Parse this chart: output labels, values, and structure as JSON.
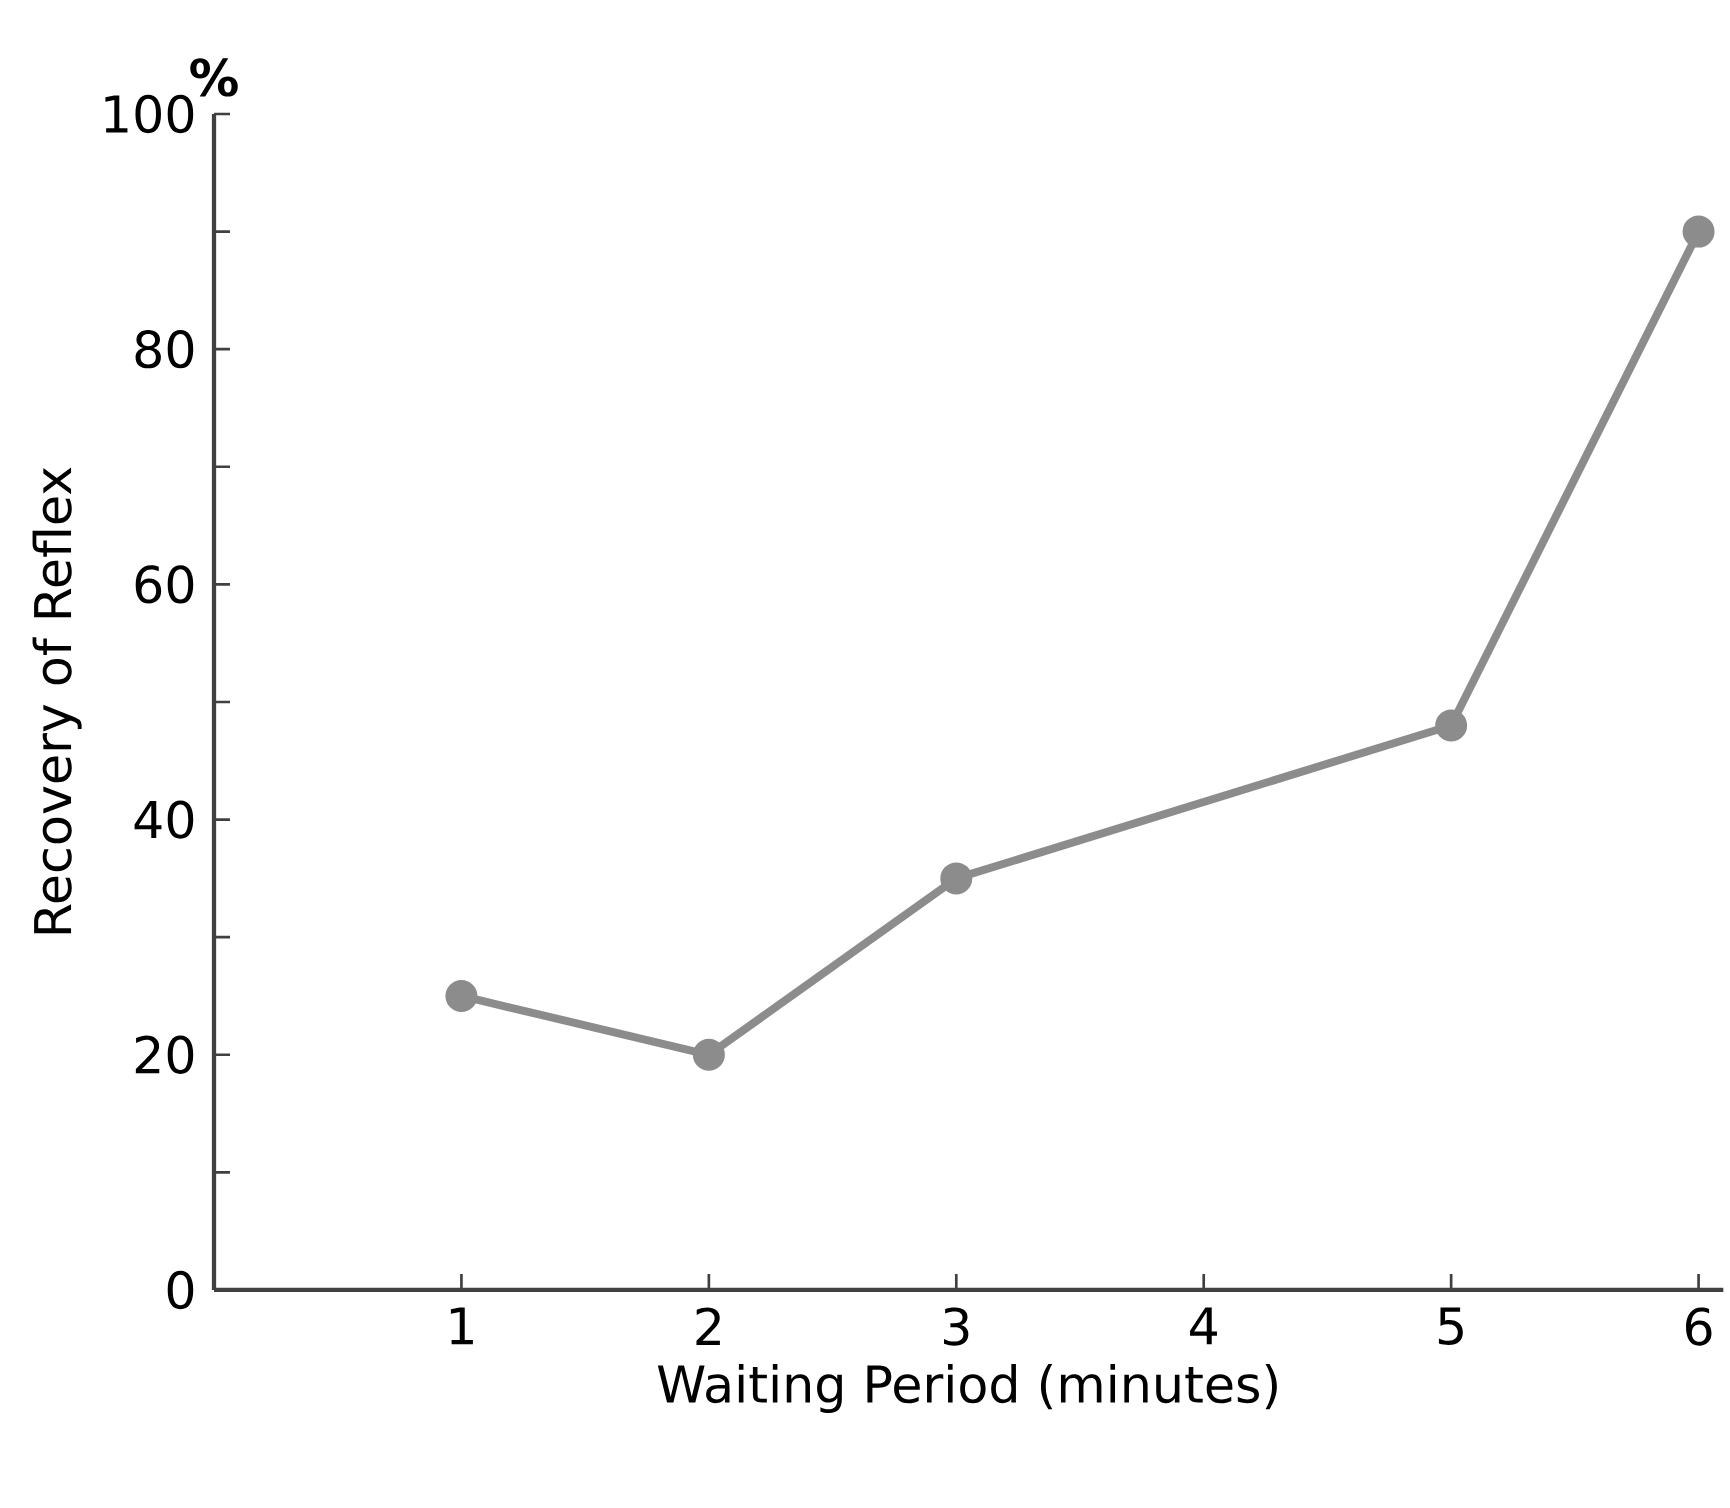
{
  "chart_data": {
    "type": "line",
    "xlabel": "Waiting Period (minutes)",
    "ylabel": "Recovery of Reflex",
    "annotations": [
      "%"
    ],
    "x": [
      1,
      2,
      3,
      5,
      6
    ],
    "series": [
      {
        "color": "#8c8c8c",
        "values": [
          25,
          20,
          35,
          48,
          90
        ]
      }
    ],
    "xlim": [
      0,
      6.1
    ],
    "xticks": [
      1,
      2,
      3,
      4,
      5,
      6
    ],
    "ylim": [
      0,
      100
    ],
    "yticks": [
      0,
      {
        "value": 10,
        "label": null
      },
      20,
      {
        "value": 30,
        "label": null
      },
      40,
      {
        "value": 50,
        "label": null
      },
      60,
      {
        "value": 70,
        "label": null
      },
      80,
      {
        "value": 90,
        "label": null
      },
      100
    ],
    "marker": "circle",
    "line_style": "solid"
  }
}
